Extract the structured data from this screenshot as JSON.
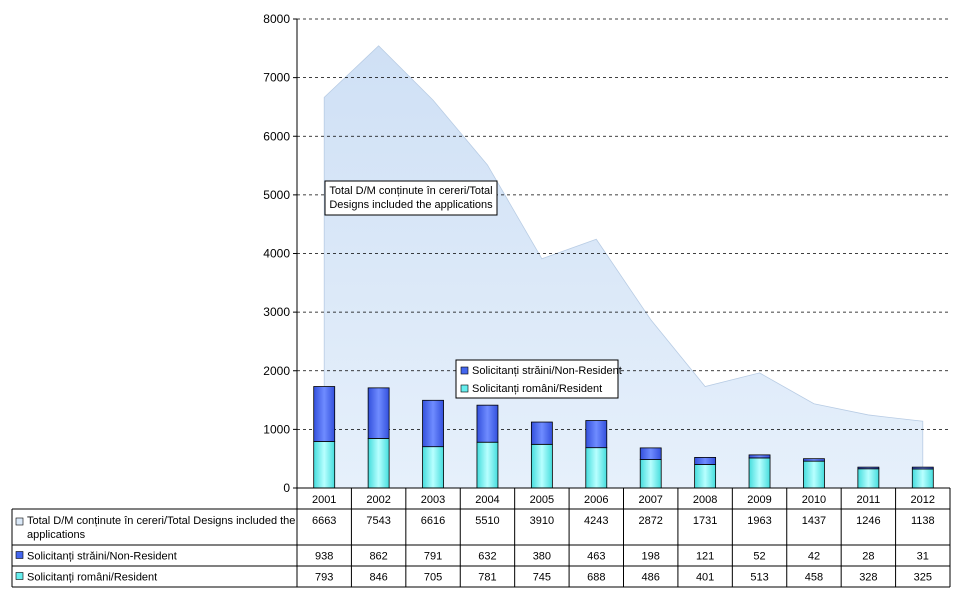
{
  "chart_data": {
    "type": "bar",
    "categories": [
      "2001",
      "2002",
      "2003",
      "2004",
      "2005",
      "2006",
      "2007",
      "2008",
      "2009",
      "2010",
      "2011",
      "2012"
    ],
    "series": [
      {
        "name": "Total D/M conținute în cereri/Total Designs included  the applications",
        "kind": "area",
        "color": "#dbe9f8",
        "values": [
          6663,
          7543,
          6616,
          5510,
          3910,
          4243,
          2872,
          1731,
          1963,
          1437,
          1246,
          1138
        ]
      },
      {
        "name": "Solicitanți străini/Non-Resident",
        "kind": "stacked-bar",
        "color": "#4466ee",
        "values": [
          938,
          862,
          791,
          632,
          380,
          463,
          198,
          121,
          52,
          42,
          28,
          31
        ]
      },
      {
        "name": "Solicitanți români/Resident",
        "kind": "stacked-bar",
        "color": "#66eeee",
        "values": [
          793,
          846,
          705,
          781,
          745,
          688,
          486,
          401,
          513,
          458,
          328,
          325
        ]
      }
    ],
    "ylim": [
      0,
      8000
    ],
    "yticks": [
      0,
      1000,
      2000,
      3000,
      4000,
      5000,
      6000,
      7000,
      8000
    ],
    "grid": true,
    "area_label_lines": [
      "Total D/M conținute în cereri/Total",
      "Designs included  the  applications"
    ],
    "data_table": true
  }
}
